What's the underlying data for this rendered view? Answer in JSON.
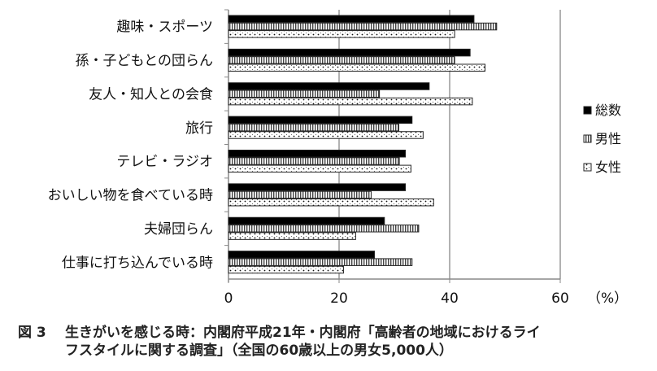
{
  "chart_data": {
    "type": "bar",
    "orientation": "horizontal",
    "categories": [
      "趣味・スポーツ",
      "孫・子どもとの団らん",
      "友人・知人との会食",
      "旅行",
      "テレビ・ラジオ",
      "おいしい物を食べている時",
      "夫婦団らん",
      "仕事に打ち込んでいる時"
    ],
    "series": [
      {
        "name": "総数",
        "pattern": "solid-black",
        "values": [
          44.4,
          43.7,
          36.3,
          33.2,
          32.0,
          32.0,
          28.2,
          26.4
        ]
      },
      {
        "name": "男性",
        "pattern": "vertical-stripes",
        "values": [
          48.5,
          40.9,
          27.3,
          30.8,
          30.9,
          25.8,
          34.4,
          33.2
        ]
      },
      {
        "name": "女性",
        "pattern": "dots",
        "values": [
          40.9,
          46.4,
          44.1,
          35.2,
          33.0,
          37.1,
          23.0,
          20.8
        ]
      }
    ],
    "xlim": [
      0,
      60
    ],
    "xticks": [
      "0",
      "20",
      "40",
      "60"
    ],
    "xunit": "（%）",
    "grid": true,
    "legend": "right"
  },
  "caption": {
    "number": "図 3",
    "line1": "生きがいを感じる時：内閣府平成21年・内閣府「高齢者の地域におけるライ",
    "line2": "フスタイルに関する調査」（全国の60歳以上の男女5,000人）"
  }
}
